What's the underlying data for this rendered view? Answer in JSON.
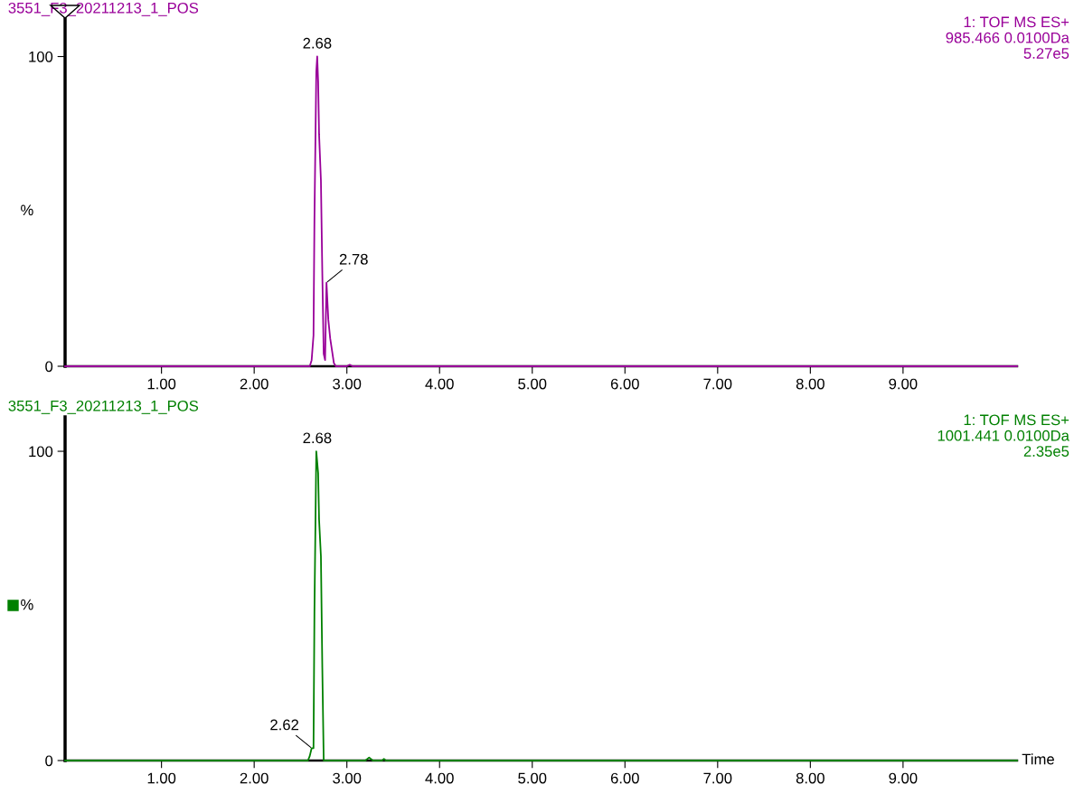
{
  "chart_data": [
    {
      "type": "line",
      "title": "3551_F3_20211213_1_POS",
      "ylabel": "%",
      "annotations": [
        "1: TOF MS ES+",
        "985.466 0.0100Da",
        "5.27e5",
        {
          "text": "2.68",
          "x": 2.68,
          "y": 100
        },
        {
          "text": "2.78",
          "x": 2.78,
          "y": 27
        }
      ],
      "series": [
        {
          "color": "#990099",
          "x": [
            -0.04,
            2.6,
            2.62,
            2.64,
            2.65,
            2.67,
            2.68,
            2.69,
            2.7,
            2.72,
            2.735,
            2.75,
            2.765,
            2.78,
            2.8,
            2.82,
            2.84,
            2.86,
            2.88,
            3.0,
            3.03,
            3.06,
            10.23
          ],
          "values": [
            0,
            0,
            2,
            10,
            47,
            95,
            100,
            92,
            75,
            60,
            30,
            4,
            2,
            27,
            15,
            9,
            5,
            1,
            0,
            0,
            0.5,
            0,
            0
          ]
        }
      ],
      "xlim": [
        -0.04,
        10.23
      ],
      "ylim": [
        0,
        113
      ],
      "yticks": [
        0,
        100
      ],
      "xticks": [
        {
          "value": 1,
          "label": "1.00"
        },
        {
          "value": 2,
          "label": "2.00"
        },
        {
          "value": 3,
          "label": "3.00"
        },
        {
          "value": 4,
          "label": "4.00"
        },
        {
          "value": 5,
          "label": "5.00"
        },
        {
          "value": 6,
          "label": "6.00"
        },
        {
          "value": 7,
          "label": "7.00"
        },
        {
          "value": 8,
          "label": "8.00"
        },
        {
          "value": 9,
          "label": "9.00"
        }
      ],
      "grid": false,
      "legend": false,
      "marker": "none",
      "line_style": "solid"
    },
    {
      "type": "line",
      "title": "3551_F3_20211213_1_POS",
      "ylabel": "%",
      "xlabel": "Time",
      "annotations": [
        "1: TOF MS ES+",
        "1001.441 0.0100Da",
        "2.35e5",
        {
          "text": "2.68",
          "x": 2.68,
          "y": 100
        },
        {
          "text": "2.62",
          "x": 2.62,
          "y": 4
        }
      ],
      "series": [
        {
          "color": "#008000",
          "x": [
            -0.04,
            2.58,
            2.6,
            2.62,
            2.64,
            2.65,
            2.67,
            2.69,
            2.7,
            2.72,
            2.735,
            2.75,
            2.77,
            3.2,
            3.24,
            3.28,
            3.38,
            3.4,
            3.42,
            10.23
          ],
          "values": [
            0,
            0,
            1.5,
            4,
            4,
            48,
            100,
            93,
            78,
            66,
            30,
            0,
            0,
            0,
            1,
            0,
            0,
            0.5,
            0,
            0
          ]
        }
      ],
      "xlim": [
        -0.04,
        10.23
      ],
      "ylim": [
        0,
        112
      ],
      "yticks": [
        0,
        100
      ],
      "xticks": [
        {
          "value": 1,
          "label": "1.00"
        },
        {
          "value": 2,
          "label": "2.00"
        },
        {
          "value": 3,
          "label": "3.00"
        },
        {
          "value": 4,
          "label": "4.00"
        },
        {
          "value": 5,
          "label": "5.00"
        },
        {
          "value": 6,
          "label": "6.00"
        },
        {
          "value": 7,
          "label": "7.00"
        },
        {
          "value": 8,
          "label": "8.00"
        },
        {
          "value": 9,
          "label": "9.00"
        }
      ],
      "grid": false,
      "legend": false,
      "marker": "none",
      "line_style": "solid"
    }
  ]
}
